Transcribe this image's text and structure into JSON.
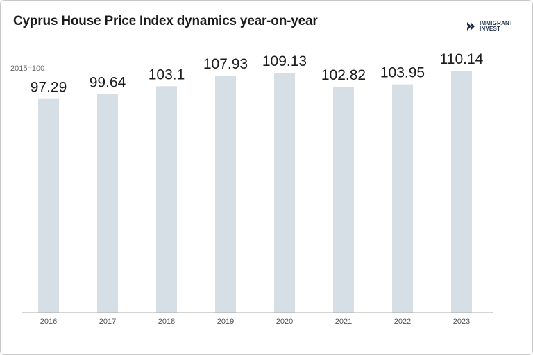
{
  "title": "Cyprus House Price Index dynamics year-on-year",
  "logo": {
    "line1": "IMMIGRANT",
    "line2": "INVEST"
  },
  "base_note": "2015=100",
  "colors": {
    "bar": "#d7dfe6",
    "baseline": "#a8a8a8",
    "label": "#1c1c1c",
    "tick": "#555555",
    "logo": "#1e2a4a"
  },
  "chart_data": {
    "type": "bar",
    "title": "Cyprus House Price Index dynamics year-on-year",
    "categories": [
      "2016",
      "2017",
      "2018",
      "2019",
      "2020",
      "2021",
      "2022",
      "2023"
    ],
    "values": [
      97.29,
      99.64,
      103.1,
      107.93,
      109.13,
      102.82,
      103.95,
      110.14
    ],
    "value_labels": [
      "97.29",
      "99.64",
      "103.1",
      "107.93",
      "109.13",
      "102.82",
      "103.95",
      "110.14"
    ],
    "ylabel": "",
    "xlabel": "",
    "ylim": [
      0,
      110.14
    ],
    "grid": false,
    "legend": "none"
  }
}
